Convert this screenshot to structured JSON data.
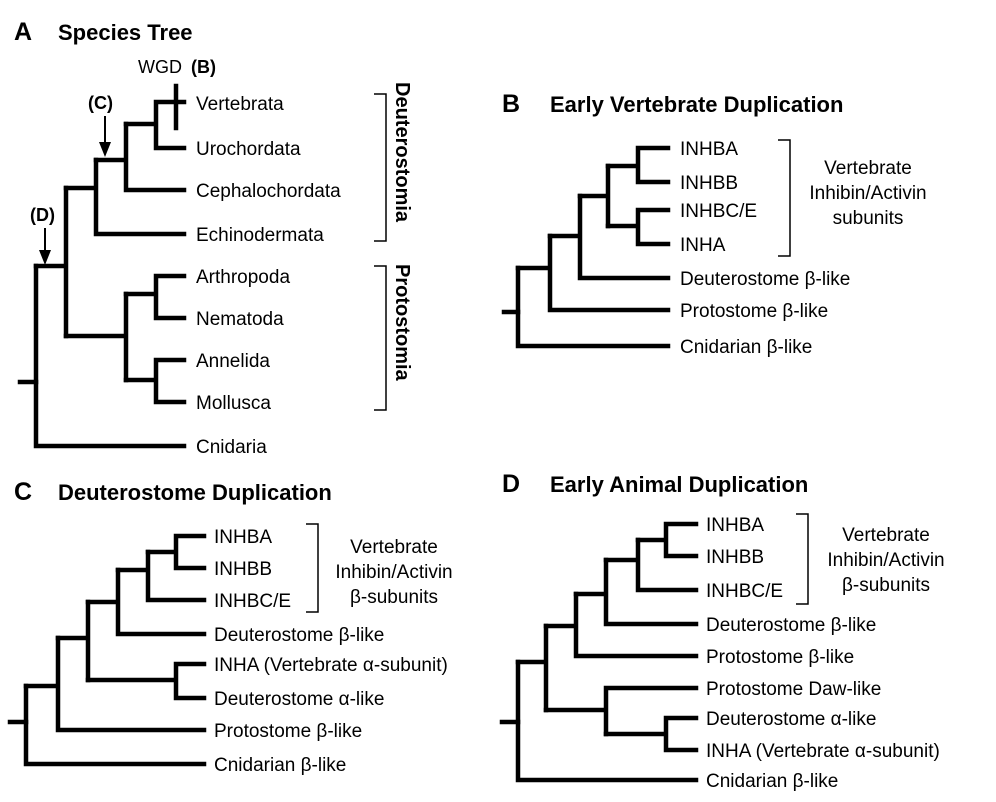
{
  "panel_a": {
    "letter": "A",
    "title": "Species Tree",
    "taxa": [
      "Vertebrata",
      "Urochordata",
      "Cephalochordata",
      "Echinodermata",
      "Arthropoda",
      "Nematoda",
      "Annelida",
      "Mollusca",
      "Cnidaria"
    ],
    "clades": [
      "Deuterostomia",
      "Protostomia"
    ],
    "markers": {
      "wgd_text": "WGD",
      "wgd_ref": "(B)",
      "c": "(C)",
      "d": "(D)"
    }
  },
  "panel_b": {
    "letter": "B",
    "title": "Early Vertebrate Duplication",
    "taxa": [
      "INHBA",
      "INHBB",
      "INHBC/E",
      "INHA",
      "Deuterostome β-like",
      "Protostome β-like",
      "Cnidarian β-like"
    ],
    "group_label": [
      "Vertebrate",
      "Inhibin/Activin",
      "subunits"
    ]
  },
  "panel_c": {
    "letter": "C",
    "title": "Deuterostome Duplication",
    "taxa": [
      "INHBA",
      "INHBB",
      "INHBC/E",
      "Deuterostome β-like",
      "INHA (Vertebrate α-subunit)",
      "Deuterostome α-like",
      "Protostome β-like",
      "Cnidarian β-like"
    ],
    "group_label": [
      "Vertebrate",
      "Inhibin/Activin",
      "β-subunits"
    ]
  },
  "panel_d": {
    "letter": "D",
    "title": "Early Animal Duplication",
    "taxa": [
      "INHBA",
      "INHBB",
      "INHBC/E",
      "Deuterostome β-like",
      "Protostome β-like",
      "Protostome Daw-like",
      "Deuterostome α-like",
      "INHA (Vertebrate α-subunit)",
      "Cnidarian β-like"
    ],
    "group_label": [
      "Vertebrate",
      "Inhibin/Activin",
      "β-subunits"
    ]
  }
}
